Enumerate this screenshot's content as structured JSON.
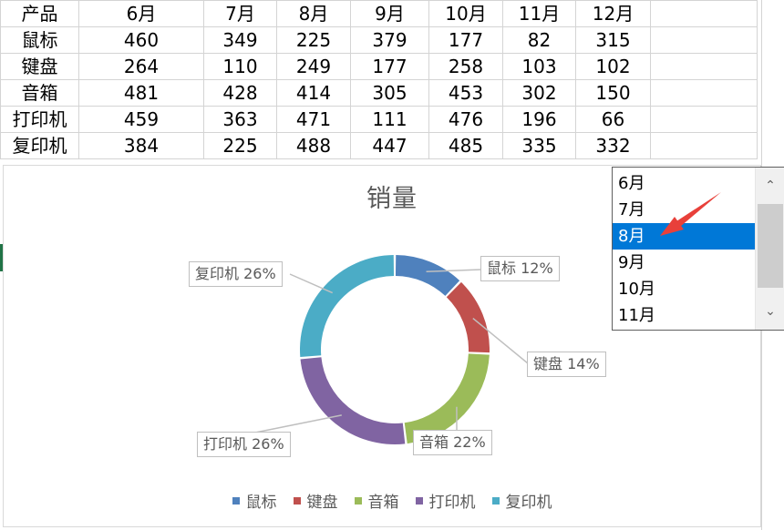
{
  "table": {
    "headers": [
      "产品",
      "6月",
      "7月",
      "8月",
      "9月",
      "10月",
      "11月",
      "12月"
    ],
    "rows": [
      [
        "鼠标",
        "460",
        "349",
        "225",
        "379",
        "177",
        "82",
        "315"
      ],
      [
        "键盘",
        "264",
        "110",
        "249",
        "177",
        "258",
        "103",
        "102"
      ],
      [
        "音箱",
        "481",
        "428",
        "414",
        "305",
        "453",
        "302",
        "150"
      ],
      [
        "打印机",
        "459",
        "363",
        "471",
        "111",
        "476",
        "196",
        "66"
      ],
      [
        "复印机",
        "384",
        "225",
        "488",
        "447",
        "485",
        "335",
        "332"
      ]
    ]
  },
  "chart_data": {
    "type": "pie",
    "title": "销量",
    "categories": [
      "鼠标",
      "键盘",
      "音箱",
      "打印机",
      "复印机"
    ],
    "values": [
      225,
      249,
      414,
      471,
      488
    ],
    "percent_labels": [
      "鼠标 12%",
      "键盘 14%",
      "音箱 22%",
      "打印机 26%",
      "复印机 26%"
    ],
    "colors": [
      "#4f81bd",
      "#c0504d",
      "#9bbb59",
      "#8064a2",
      "#4bacc6"
    ],
    "style": "doughnut",
    "legend": "bottom"
  },
  "listbox": {
    "items": [
      "6月",
      "7月",
      "8月",
      "9月",
      "10月",
      "11月"
    ],
    "selected_index": 2,
    "scroll_up_icon": "chevron-up-icon",
    "scroll_down_icon": "chevron-down-icon"
  },
  "annotation": {
    "color": "#e8403a",
    "icon": "red-arrow-icon"
  }
}
